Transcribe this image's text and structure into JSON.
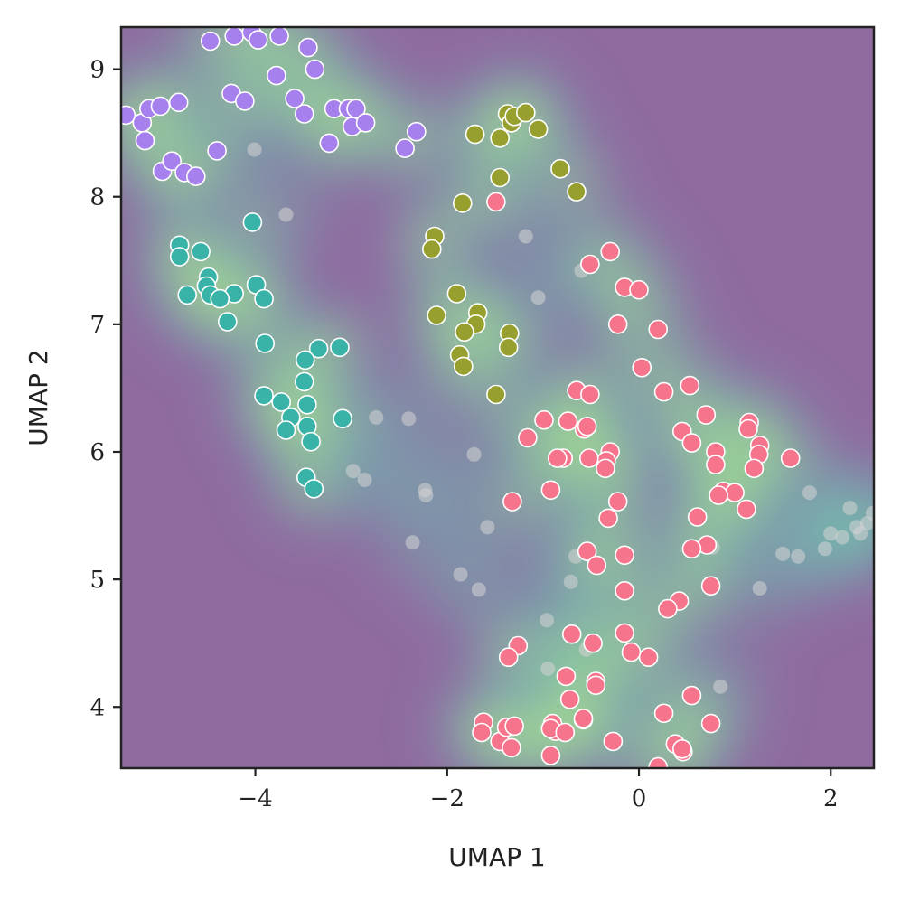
{
  "chart_data": {
    "type": "scatter",
    "title": "",
    "xlabel": "UMAP 1",
    "ylabel": "UMAP 2",
    "xlim": [
      -5.4,
      2.45
    ],
    "ylim": [
      3.52,
      9.33
    ],
    "xticks": [
      -4,
      -2,
      0,
      2
    ],
    "xtick_labels": [
      "−4",
      "−2",
      "0",
      "2"
    ],
    "yticks": [
      4,
      5,
      6,
      7,
      8,
      9
    ],
    "ytick_labels": [
      "4",
      "5",
      "6",
      "7",
      "8",
      "9"
    ],
    "grid": false,
    "legend": "none",
    "background_density": {
      "description": "filled KDE contours of all points",
      "colormap": "viridis",
      "low_color": "#8f6b9f",
      "high_color": "#e5ee70"
    },
    "series": [
      {
        "color": "#a680ec",
        "points": [
          [
            -4.47,
            9.22
          ],
          [
            -4.22,
            9.26
          ],
          [
            -4.04,
            9.29
          ],
          [
            -3.97,
            9.23
          ],
          [
            -3.75,
            9.26
          ],
          [
            -3.45,
            9.17
          ],
          [
            -3.38,
            9.0
          ],
          [
            -3.78,
            8.95
          ],
          [
            -4.25,
            8.81
          ],
          [
            -4.11,
            8.75
          ],
          [
            -3.59,
            8.77
          ],
          [
            -3.49,
            8.65
          ],
          [
            -3.18,
            8.69
          ],
          [
            -3.03,
            8.69
          ],
          [
            -2.95,
            8.69
          ],
          [
            -2.99,
            8.55
          ],
          [
            -2.85,
            8.58
          ],
          [
            -3.23,
            8.42
          ],
          [
            -2.32,
            8.51
          ],
          [
            -2.44,
            8.38
          ],
          [
            -5.35,
            8.64
          ],
          [
            -5.18,
            8.58
          ],
          [
            -5.11,
            8.69
          ],
          [
            -4.99,
            8.71
          ],
          [
            -4.8,
            8.74
          ],
          [
            -5.15,
            8.44
          ],
          [
            -4.4,
            8.36
          ],
          [
            -4.97,
            8.2
          ],
          [
            -4.87,
            8.28
          ],
          [
            -4.74,
            8.19
          ],
          [
            -4.62,
            8.16
          ]
        ]
      },
      {
        "color": "#97a02e",
        "points": [
          [
            -1.37,
            8.65
          ],
          [
            -1.33,
            8.58
          ],
          [
            -1.3,
            8.63
          ],
          [
            -1.18,
            8.66
          ],
          [
            -1.05,
            8.53
          ],
          [
            -1.71,
            8.49
          ],
          [
            -1.45,
            8.46
          ],
          [
            -1.45,
            8.15
          ],
          [
            -0.82,
            8.22
          ],
          [
            -0.65,
            8.04
          ],
          [
            -1.84,
            7.95
          ],
          [
            -2.13,
            7.69
          ],
          [
            -2.16,
            7.59
          ],
          [
            -1.9,
            7.24
          ],
          [
            -2.11,
            7.07
          ],
          [
            -1.68,
            7.09
          ],
          [
            -1.7,
            7.0
          ],
          [
            -1.82,
            6.94
          ],
          [
            -1.35,
            6.93
          ],
          [
            -1.36,
            6.82
          ],
          [
            -1.87,
            6.76
          ],
          [
            -1.83,
            6.67
          ],
          [
            -1.49,
            6.45
          ]
        ]
      },
      {
        "color": "#39b3a8",
        "points": [
          [
            -4.03,
            7.8
          ],
          [
            -4.79,
            7.62
          ],
          [
            -4.57,
            7.57
          ],
          [
            -4.79,
            7.53
          ],
          [
            -4.49,
            7.37
          ],
          [
            -4.51,
            7.3
          ],
          [
            -3.99,
            7.31
          ],
          [
            -4.71,
            7.23
          ],
          [
            -4.47,
            7.23
          ],
          [
            -4.22,
            7.24
          ],
          [
            -4.37,
            7.2
          ],
          [
            -3.91,
            7.2
          ],
          [
            -4.29,
            7.02
          ],
          [
            -3.9,
            6.85
          ],
          [
            -3.34,
            6.81
          ],
          [
            -3.12,
            6.82
          ],
          [
            -3.48,
            6.72
          ],
          [
            -3.49,
            6.55
          ],
          [
            -3.91,
            6.44
          ],
          [
            -3.73,
            6.39
          ],
          [
            -3.46,
            6.37
          ],
          [
            -3.63,
            6.27
          ],
          [
            -3.46,
            6.2
          ],
          [
            -3.68,
            6.17
          ],
          [
            -3.09,
            6.26
          ],
          [
            -3.42,
            6.08
          ],
          [
            -3.47,
            5.8
          ],
          [
            -3.39,
            5.71
          ]
        ]
      },
      {
        "color": "#f6758c",
        "points": [
          [
            -1.49,
            7.96
          ],
          [
            -0.3,
            7.57
          ],
          [
            -0.51,
            7.47
          ],
          [
            -0.15,
            7.29
          ],
          [
            0.0,
            7.27
          ],
          [
            -0.22,
            7.0
          ],
          [
            0.2,
            6.96
          ],
          [
            0.03,
            6.66
          ],
          [
            -0.65,
            6.48
          ],
          [
            -0.51,
            6.45
          ],
          [
            0.26,
            6.47
          ],
          [
            0.53,
            6.52
          ],
          [
            0.7,
            6.29
          ],
          [
            -1.16,
            6.11
          ],
          [
            -0.99,
            6.25
          ],
          [
            -0.74,
            6.24
          ],
          [
            -0.57,
            6.18
          ],
          [
            -0.54,
            6.2
          ],
          [
            -0.3,
            6.0
          ],
          [
            -0.34,
            5.93
          ],
          [
            -0.52,
            5.95
          ],
          [
            -0.79,
            5.95
          ],
          [
            -0.85,
            5.95
          ],
          [
            -0.35,
            5.87
          ],
          [
            0.45,
            6.16
          ],
          [
            0.55,
            6.07
          ],
          [
            0.8,
            6.0
          ],
          [
            0.8,
            5.9
          ],
          [
            1.15,
            6.23
          ],
          [
            1.14,
            6.18
          ],
          [
            1.26,
            6.05
          ],
          [
            1.25,
            5.98
          ],
          [
            1.2,
            5.87
          ],
          [
            1.58,
            5.95
          ],
          [
            -1.32,
            5.61
          ],
          [
            -0.92,
            5.7
          ],
          [
            -0.22,
            5.61
          ],
          [
            -0.32,
            5.48
          ],
          [
            0.88,
            5.69
          ],
          [
            1.0,
            5.68
          ],
          [
            0.83,
            5.66
          ],
          [
            1.12,
            5.55
          ],
          [
            0.61,
            5.49
          ],
          [
            0.71,
            5.27
          ],
          [
            0.55,
            5.24
          ],
          [
            -0.54,
            5.22
          ],
          [
            -0.44,
            5.11
          ],
          [
            -0.15,
            5.19
          ],
          [
            0.75,
            4.95
          ],
          [
            -0.15,
            4.91
          ],
          [
            0.42,
            4.83
          ],
          [
            0.3,
            4.77
          ],
          [
            -0.7,
            4.57
          ],
          [
            -0.48,
            4.5
          ],
          [
            -0.15,
            4.58
          ],
          [
            -1.26,
            4.48
          ],
          [
            -1.36,
            4.39
          ],
          [
            -0.08,
            4.43
          ],
          [
            0.1,
            4.39
          ],
          [
            -0.76,
            4.24
          ],
          [
            -0.45,
            4.2
          ],
          [
            -0.45,
            4.17
          ],
          [
            -0.72,
            4.06
          ],
          [
            0.55,
            4.09
          ],
          [
            -0.58,
            3.9
          ],
          [
            -1.62,
            3.88
          ],
          [
            -1.64,
            3.8
          ],
          [
            -1.45,
            3.73
          ],
          [
            -1.38,
            3.84
          ],
          [
            -1.3,
            3.85
          ],
          [
            -1.33,
            3.68
          ],
          [
            -0.87,
            3.81
          ],
          [
            -0.9,
            3.87
          ],
          [
            -0.92,
            3.83
          ],
          [
            -0.77,
            3.8
          ],
          [
            -0.58,
            3.91
          ],
          [
            -0.27,
            3.73
          ],
          [
            -0.92,
            3.62
          ],
          [
            0.26,
            3.95
          ],
          [
            0.75,
            3.87
          ],
          [
            0.38,
            3.71
          ],
          [
            0.46,
            3.65
          ],
          [
            0.45,
            3.67
          ],
          [
            0.2,
            3.53
          ]
        ]
      },
      {
        "color": "#d3d3d3",
        "points": [
          [
            -4.01,
            8.37
          ],
          [
            -3.68,
            7.86
          ],
          [
            -1.18,
            7.69
          ],
          [
            -1.05,
            7.21
          ],
          [
            -0.6,
            7.42
          ],
          [
            -2.4,
            6.26
          ],
          [
            -2.74,
            6.27
          ],
          [
            -1.72,
            5.98
          ],
          [
            -2.98,
            5.85
          ],
          [
            -2.86,
            5.78
          ],
          [
            -2.23,
            5.7
          ],
          [
            -2.22,
            5.66
          ],
          [
            -1.58,
            5.41
          ],
          [
            -2.36,
            5.29
          ],
          [
            -1.86,
            5.04
          ],
          [
            -1.67,
            4.92
          ],
          [
            -0.71,
            4.98
          ],
          [
            -0.96,
            4.68
          ],
          [
            -0.66,
            5.18
          ],
          [
            0.77,
            5.25
          ],
          [
            1.26,
            4.93
          ],
          [
            1.5,
            5.2
          ],
          [
            1.66,
            5.18
          ],
          [
            1.78,
            5.68
          ],
          [
            1.94,
            5.24
          ],
          [
            2.0,
            5.36
          ],
          [
            2.12,
            5.33
          ],
          [
            2.2,
            5.56
          ],
          [
            2.27,
            5.41
          ],
          [
            2.31,
            5.36
          ],
          [
            2.38,
            5.44
          ],
          [
            2.44,
            5.52
          ],
          [
            0.85,
            4.16
          ],
          [
            -0.95,
            4.3
          ],
          [
            -0.55,
            4.45
          ]
        ]
      }
    ]
  }
}
